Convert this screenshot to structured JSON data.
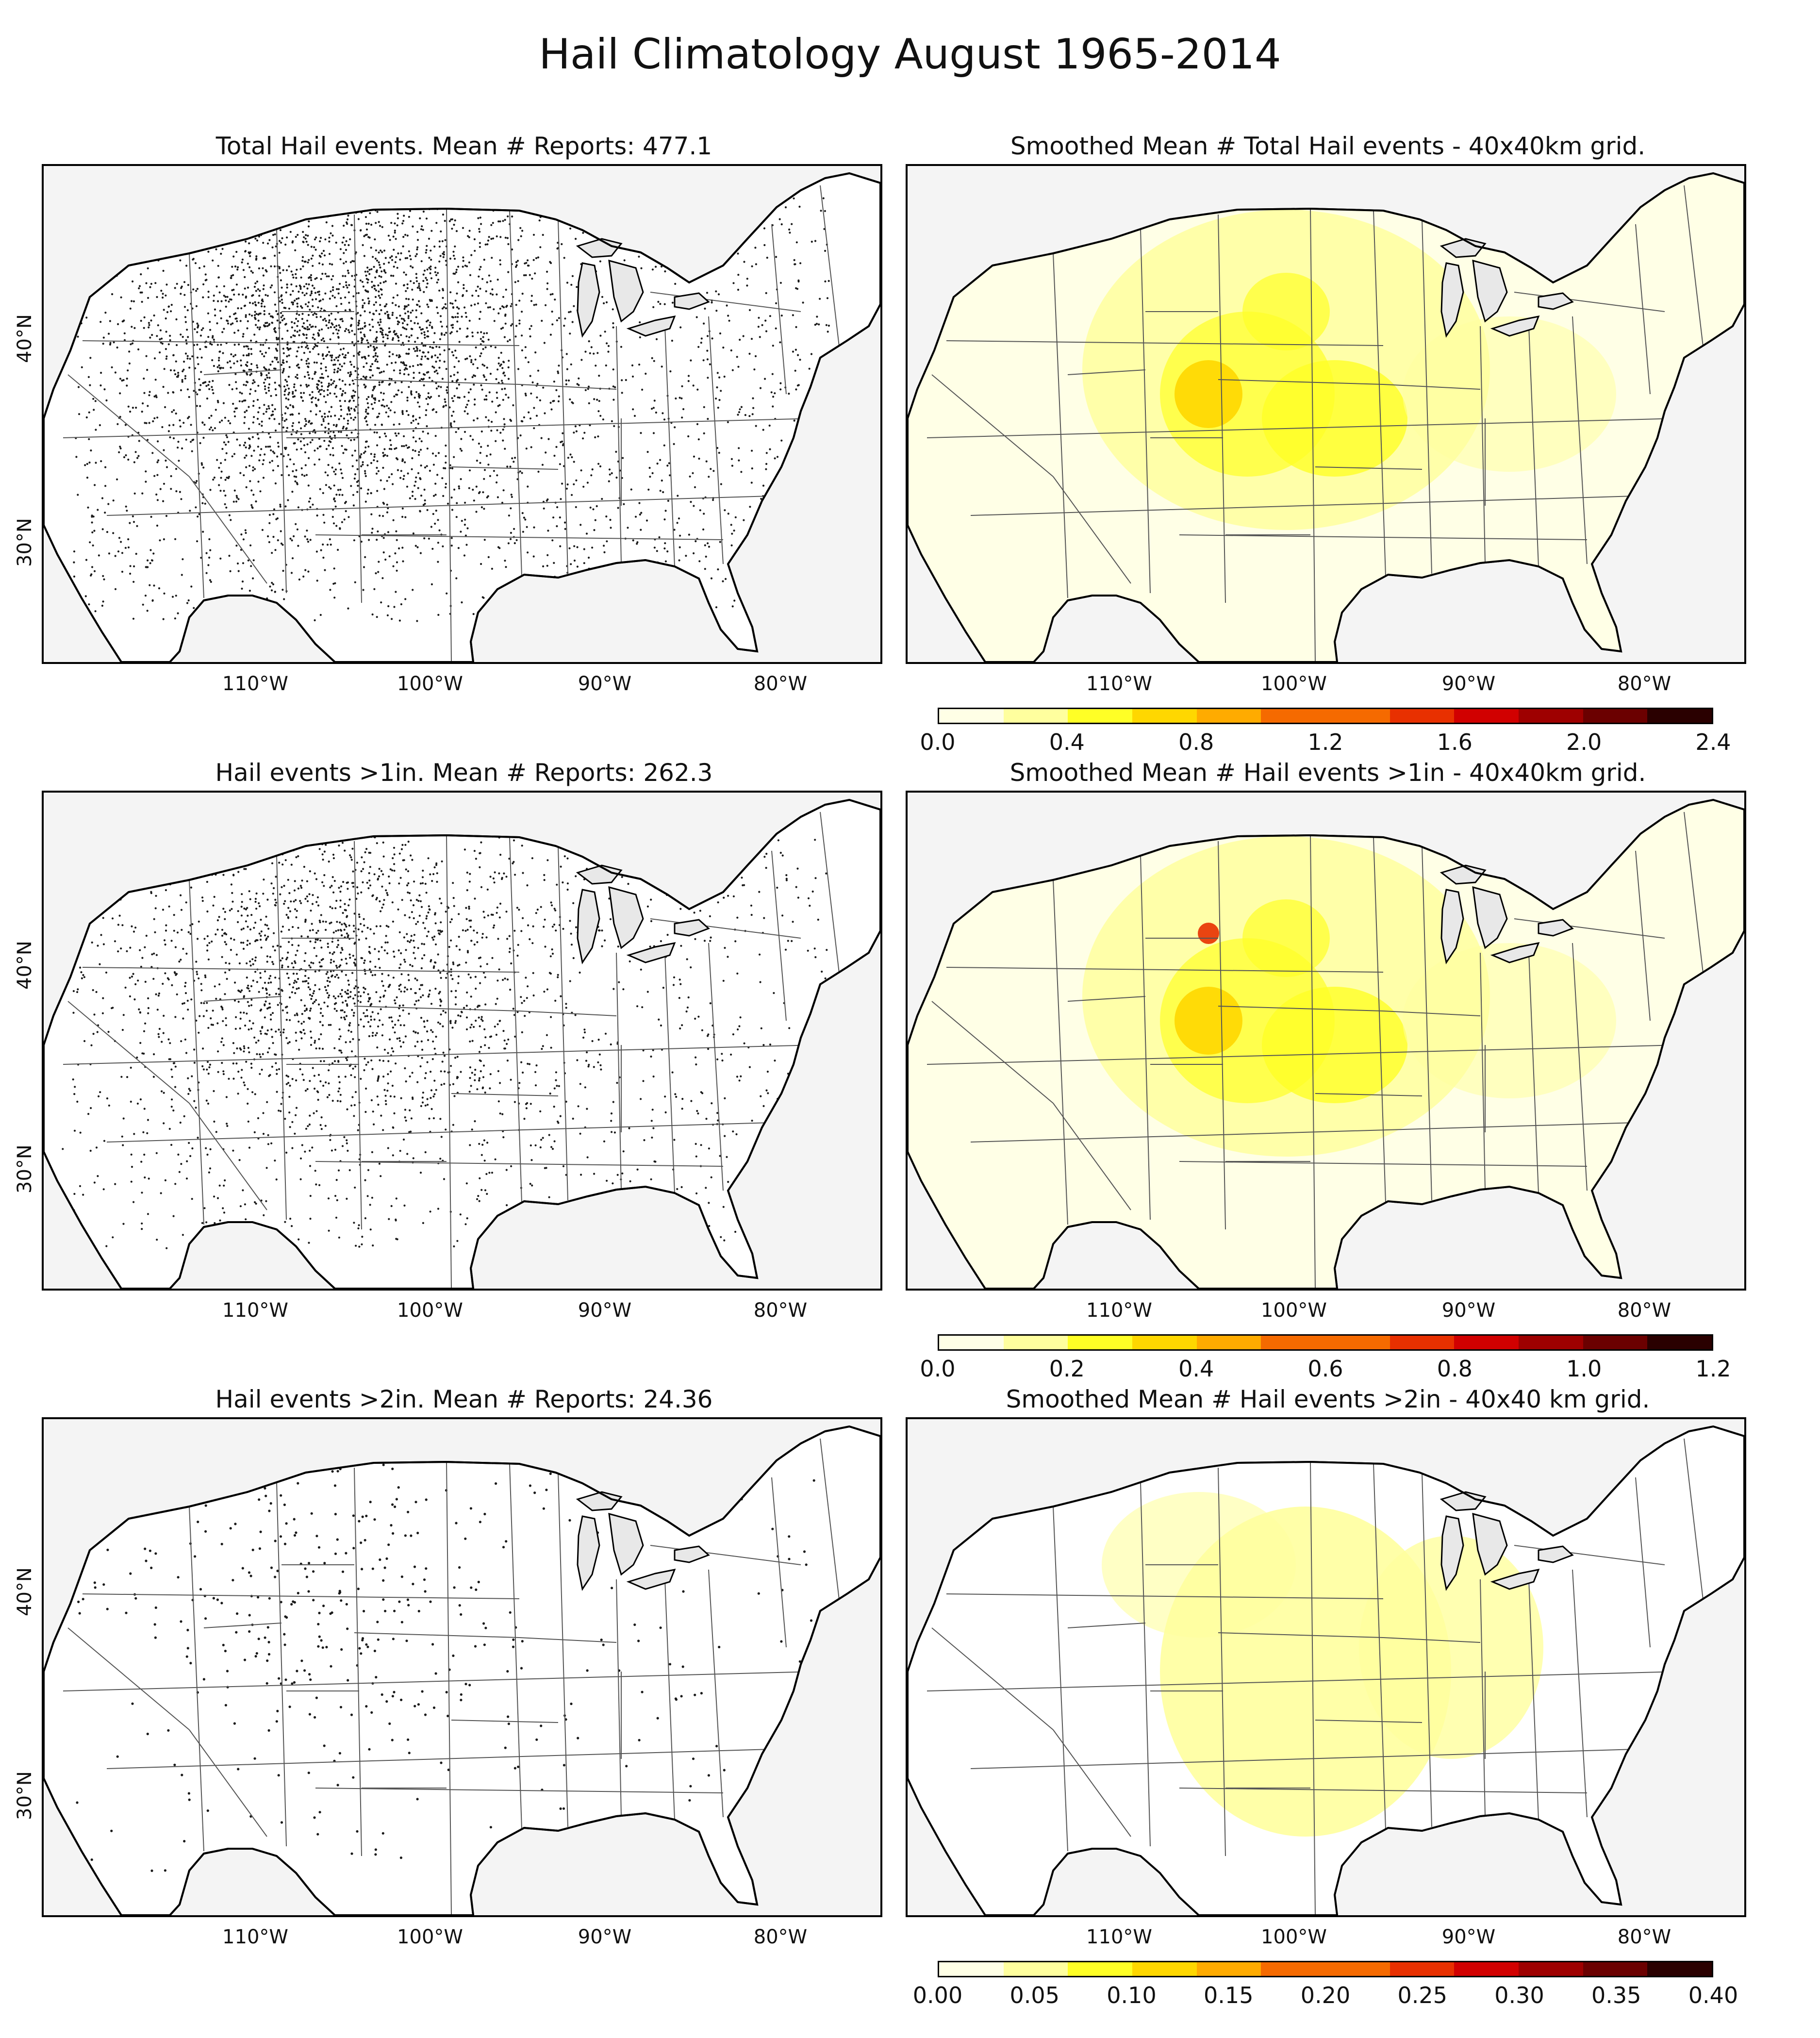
{
  "title": "Hail Climatology August 1965-2014",
  "longitude_labels": [
    "110°W",
    "100°W",
    "90°W",
    "80°W"
  ],
  "latitude_labels": [
    "40°N",
    "30°N"
  ],
  "colors": {
    "land": "#ffffff",
    "outside_domain": "#f4f4f4",
    "water_lakes": "#e8e8e8",
    "report_dots": "#1a1a1a",
    "state_lines": "#555555",
    "coastline": "#000000"
  },
  "colorscale": [
    "#ffffe6",
    "#ffff9e",
    "#ffff26",
    "#ffd700",
    "#ffab00",
    "#f56a00",
    "#e83000",
    "#d10000",
    "#9e0000",
    "#6b0000",
    "#2a0000"
  ],
  "rows": [
    {
      "report_panel": {
        "title": "Total Hail events. Mean # Reports: 477.1",
        "mean_reports": 477.1,
        "density": "high"
      },
      "smoothed_panel": {
        "title": "Smoothed Mean # Total Hail events - 40x40km grid.",
        "colorbar_ticks": [
          "0.0",
          "0.4",
          "0.8",
          "1.2",
          "1.6",
          "2.0",
          "2.4"
        ],
        "colorbar_min": 0.0,
        "colorbar_max": 2.4
      }
    },
    {
      "report_panel": {
        "title": "Hail events >1in. Mean # Reports: 262.3",
        "mean_reports": 262.3,
        "density": "medium"
      },
      "smoothed_panel": {
        "title": "Smoothed Mean # Hail events >1in - 40x40km grid.",
        "colorbar_ticks": [
          "0.0",
          "0.2",
          "0.4",
          "0.6",
          "0.8",
          "1.0",
          "1.2"
        ],
        "colorbar_min": 0.0,
        "colorbar_max": 1.2
      }
    },
    {
      "report_panel": {
        "title": "Hail events >2in. Mean # Reports: 24.36",
        "mean_reports": 24.36,
        "density": "low"
      },
      "smoothed_panel": {
        "title": "Smoothed Mean # Hail events >2in - 40x40 km grid.",
        "colorbar_ticks": [
          "0.00",
          "0.05",
          "0.10",
          "0.15",
          "0.20",
          "0.25",
          "0.30",
          "0.35",
          "0.40"
        ],
        "colorbar_min": 0.0,
        "colorbar_max": 0.4
      }
    }
  ]
}
